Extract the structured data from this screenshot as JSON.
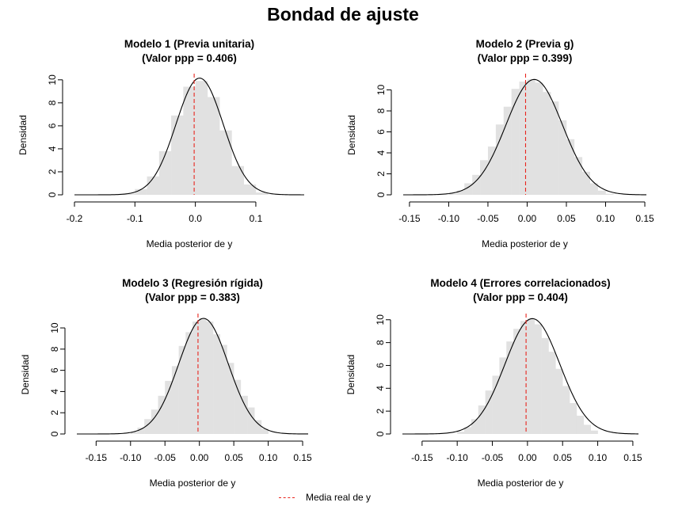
{
  "title": "Bondad de ajuste",
  "legend": {
    "label": "Media real de y",
    "color": "#e8251e",
    "line_style": "dashed"
  },
  "colors": {
    "histogram": "#e1e1e1",
    "density": "#000000",
    "reference": "#e8251e"
  },
  "chart_data": [
    {
      "type": "histogram",
      "title": "Modelo 1 (Previa unitaria)",
      "subtitle": "(Valor ppp = 0.406)",
      "xlabel": "Media posterior de y",
      "ylabel": "Densidad",
      "xlim": [
        -0.2,
        0.18
      ],
      "ylim": [
        0,
        10.4
      ],
      "xticks": [
        -0.2,
        -0.1,
        0.0,
        0.1
      ],
      "xtick_labels": [
        "-0.2",
        "-0.1",
        "0.0",
        "0.1"
      ],
      "yticks": [
        0,
        2,
        4,
        6,
        8,
        10
      ],
      "reference_line_x": -0.002,
      "bins": {
        "edges": [
          -0.12,
          -0.1,
          -0.08,
          -0.06,
          -0.04,
          -0.02,
          0.0,
          0.02,
          0.04,
          0.06,
          0.08,
          0.1,
          0.12
        ],
        "density": [
          0.1,
          0.5,
          1.6,
          3.8,
          6.9,
          9.4,
          9.9,
          8.5,
          5.6,
          2.5,
          0.9,
          0.2
        ]
      },
      "density_curve": {
        "mean": 0.007,
        "sd": 0.039,
        "peak": 10.15,
        "range": [
          -0.2,
          0.18
        ]
      }
    },
    {
      "type": "histogram",
      "title": "Modelo 2 (Previa g)",
      "subtitle": "(Valor ppp = 0.399)",
      "xlabel": "Media posterior de y",
      "ylabel": "Densidad",
      "xlim": [
        -0.158,
        0.152
      ],
      "ylim": [
        0,
        11.4
      ],
      "xticks": [
        -0.15,
        -0.1,
        -0.05,
        0.0,
        0.05,
        0.1,
        0.15
      ],
      "xtick_labels": [
        "-0.15",
        "-0.10",
        "-0.05",
        "0.00",
        "0.05",
        "0.10",
        "0.15"
      ],
      "yticks": [
        0,
        2,
        4,
        6,
        8,
        10
      ],
      "reference_line_x": -0.002,
      "bins": {
        "edges": [
          -0.1,
          -0.09,
          -0.08,
          -0.07,
          -0.06,
          -0.05,
          -0.04,
          -0.03,
          -0.02,
          -0.01,
          0.0,
          0.01,
          0.02,
          0.03,
          0.04,
          0.05,
          0.06,
          0.07,
          0.08,
          0.09,
          0.1,
          0.11
        ],
        "density": [
          0.1,
          0.4,
          1.1,
          1.9,
          3.3,
          4.6,
          6.7,
          8.4,
          10.1,
          10.8,
          11.0,
          10.7,
          9.8,
          8.9,
          7.1,
          5.3,
          3.6,
          2.2,
          1.1,
          0.4,
          0.1
        ]
      },
      "density_curve": {
        "mean": 0.009,
        "sd": 0.036,
        "peak": 11.0,
        "range": [
          -0.158,
          0.152
        ]
      }
    },
    {
      "type": "histogram",
      "title": "Modelo 3 (Regresión rígida)",
      "subtitle": "(Valor ppp = 0.383)",
      "xlabel": "Media posterior de y",
      "ylabel": "Densidad",
      "xlim": [
        -0.178,
        0.158
      ],
      "ylim": [
        0,
        11.2
      ],
      "xticks": [
        -0.15,
        -0.1,
        -0.05,
        0.0,
        0.05,
        0.1,
        0.15
      ],
      "xtick_labels": [
        "-0.15",
        "-0.10",
        "-0.05",
        "0.00",
        "0.05",
        "0.10",
        "0.15"
      ],
      "yticks": [
        0,
        2,
        4,
        6,
        8,
        10
      ],
      "reference_line_x": -0.002,
      "bins": {
        "edges": [
          -0.1,
          -0.09,
          -0.08,
          -0.07,
          -0.06,
          -0.05,
          -0.04,
          -0.03,
          -0.02,
          -0.01,
          0.0,
          0.01,
          0.02,
          0.03,
          0.04,
          0.05,
          0.06,
          0.07,
          0.08,
          0.09,
          0.1
        ],
        "density": [
          0.2,
          0.6,
          1.4,
          2.3,
          3.6,
          5.0,
          6.4,
          8.3,
          9.6,
          10.6,
          10.9,
          10.6,
          9.4,
          8.4,
          6.7,
          5.1,
          3.6,
          2.5,
          1.3,
          0.5
        ]
      },
      "density_curve": {
        "mean": 0.006,
        "sd": 0.036,
        "peak": 10.9,
        "range": [
          -0.178,
          0.158
        ]
      }
    },
    {
      "type": "histogram",
      "title": "Modelo 4 (Errores correlacionados)",
      "subtitle": "(Valor ppp = 0.404)",
      "xlabel": "Media posterior de y",
      "ylabel": "Densidad",
      "xlim": [
        -0.178,
        0.158
      ],
      "ylim": [
        0,
        10.4
      ],
      "xticks": [
        -0.15,
        -0.1,
        -0.05,
        0.0,
        0.05,
        0.1,
        0.15
      ],
      "xtick_labels": [
        "-0.15",
        "-0.10",
        "-0.05",
        "0.00",
        "0.05",
        "0.10",
        "0.15"
      ],
      "yticks": [
        0,
        2,
        4,
        6,
        8,
        10
      ],
      "reference_line_x": -0.002,
      "bins": {
        "edges": [
          -0.1,
          -0.09,
          -0.08,
          -0.07,
          -0.06,
          -0.05,
          -0.04,
          -0.03,
          -0.02,
          -0.01,
          0.0,
          0.01,
          0.02,
          0.03,
          0.04,
          0.05,
          0.06,
          0.07,
          0.08,
          0.09,
          0.1
        ],
        "density": [
          0.2,
          0.6,
          1.3,
          2.5,
          3.8,
          5.1,
          6.7,
          8.1,
          9.2,
          9.9,
          10.1,
          9.6,
          8.4,
          7.2,
          5.7,
          4.2,
          2.7,
          1.6,
          0.8,
          0.3
        ]
      },
      "density_curve": {
        "mean": 0.007,
        "sd": 0.039,
        "peak": 10.1,
        "range": [
          -0.178,
          0.158
        ]
      }
    }
  ]
}
